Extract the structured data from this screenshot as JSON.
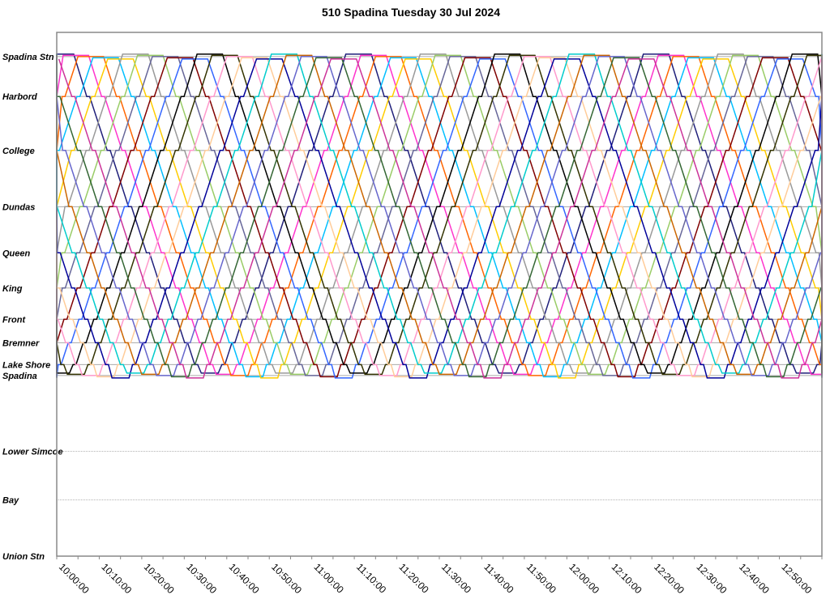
{
  "chart_data": {
    "type": "line",
    "title": "510 Spadina Tuesday 30 Jul 2024",
    "xlabel": "",
    "ylabel": "",
    "xlim_minutes_after_10": [
      0,
      180
    ],
    "x_tick_labels": [
      "10:00:00",
      "10:10:00",
      "10:20:00",
      "10:30:00",
      "10:40:00",
      "10:50:00",
      "11:00:00",
      "11:10:00",
      "11:20:00",
      "11:30:00",
      "11:40:00",
      "11:50:00",
      "12:00:00",
      "12:10:00",
      "12:20:00",
      "12:30:00",
      "12:40:00",
      "12:50:00"
    ],
    "grid": true,
    "stations": [
      {
        "name": "Spadina Stn",
        "distance_m": 6390
      },
      {
        "name": "Harbord",
        "distance_m": 5880
      },
      {
        "name": "College",
        "distance_m": 5190
      },
      {
        "name": "Dundas",
        "distance_m": 4470
      },
      {
        "name": "Queen",
        "distance_m": 3880
      },
      {
        "name": "King",
        "distance_m": 3430
      },
      {
        "name": "Front",
        "distance_m": 3030
      },
      {
        "name": "Bremner",
        "distance_m": 2730
      },
      {
        "name": "Lake Shore",
        "distance_m": 2450
      },
      {
        "name": "Spadina",
        "distance_m": 2310
      },
      {
        "name": "Lower Simcoe",
        "distance_m": 1340
      },
      {
        "name": "Bay",
        "distance_m": 720
      },
      {
        "name": "Union Stn",
        "distance_m": 0
      }
    ],
    "ylim_m": [
      0,
      6700
    ],
    "route_terminals": [
      "Spadina Stn",
      "Spadina"
    ],
    "schedule_approx": {
      "run_minutes": 30,
      "layover_bottom_minutes": 4,
      "layover_top_minutes": 6,
      "stop_dwell_minutes": 0.7
    },
    "vehicles": [
      {
        "color": "#1f1f7a",
        "first_top_departure_min": -66
      },
      {
        "color": "#ff33cc",
        "first_top_departure_min": -62.5
      },
      {
        "color": "#ff6600",
        "first_top_departure_min": -59
      },
      {
        "color": "#00bfff",
        "first_top_departure_min": -55.5
      },
      {
        "color": "#ffcc00",
        "first_top_departure_min": -52
      },
      {
        "color": "#999999",
        "first_top_departure_min": -48.5
      },
      {
        "color": "#99cc66",
        "first_top_departure_min": -45
      },
      {
        "color": "#666699",
        "first_top_departure_min": -41.5
      },
      {
        "color": "#800000",
        "first_top_departure_min": -38
      },
      {
        "color": "#3366ff",
        "first_top_departure_min": -34.5
      },
      {
        "color": "#000000",
        "first_top_departure_min": -31
      },
      {
        "color": "#333300",
        "first_top_departure_min": -27.5
      },
      {
        "color": "#ff99cc",
        "first_top_departure_min": -24
      },
      {
        "color": "#ffcc99",
        "first_top_departure_min": -20.5
      },
      {
        "color": "#000099",
        "first_top_departure_min": -17
      },
      {
        "color": "#00cccc",
        "first_top_departure_min": -13.5
      },
      {
        "color": "#cc6600",
        "first_top_departure_min": -10
      },
      {
        "color": "#6666cc",
        "first_top_departure_min": -6.5
      },
      {
        "color": "#336633",
        "first_top_departure_min": -3
      },
      {
        "color": "#cc3399",
        "first_top_departure_min": 0.5
      }
    ]
  }
}
